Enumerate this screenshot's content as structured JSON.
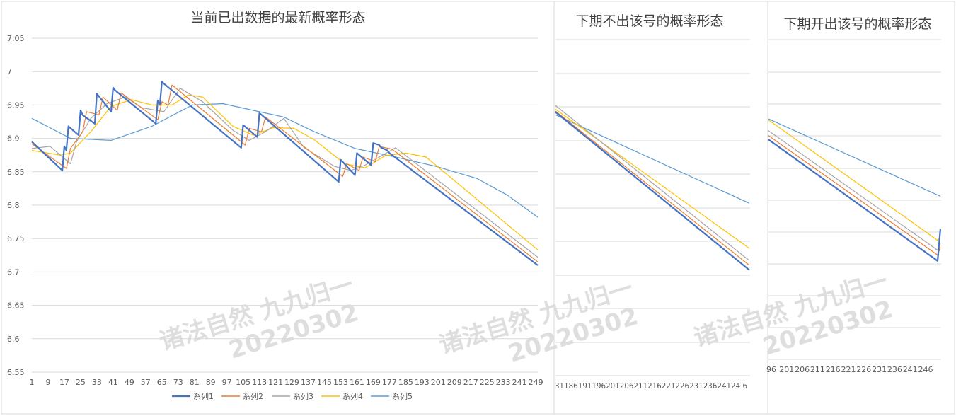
{
  "chart_data": [
    {
      "type": "line",
      "title": "当前已出数据的最新概率形态",
      "ylim": [
        6.55,
        7.05
      ],
      "yticks": [
        "7.05",
        "7",
        "6.95",
        "6.9",
        "6.85",
        "6.8",
        "6.75",
        "6.7",
        "6.65",
        "6.6",
        "6.55"
      ],
      "xticks": [
        "1",
        "9",
        "17",
        "25",
        "33",
        "41",
        "49",
        "57",
        "65",
        "73",
        "81",
        "89",
        "97",
        "105",
        "113",
        "121",
        "129",
        "137",
        "145",
        "153",
        "161",
        "169",
        "177",
        "185",
        "193",
        "201",
        "209",
        "217",
        "225",
        "233",
        "241",
        "249"
      ],
      "xlim": [
        1,
        250
      ],
      "legend_position": "bottom",
      "series": [
        {
          "name": "系列1",
          "color": "#4472c4",
          "x": [
            1,
            16,
            17,
            18,
            19,
            24,
            25,
            26,
            32,
            33,
            40,
            41,
            42,
            62,
            63,
            64,
            65,
            66,
            104,
            105,
            112,
            113,
            152,
            153,
            160,
            161,
            168,
            169,
            172,
            173,
            176,
            177,
            250
          ],
          "y": [
            6.895,
            6.852,
            6.888,
            6.882,
            6.918,
            6.905,
            6.942,
            6.935,
            6.922,
            6.967,
            6.94,
            6.976,
            6.972,
            6.922,
            6.957,
            6.95,
            6.985,
            6.982,
            6.886,
            6.92,
            6.902,
            6.938,
            6.835,
            6.868,
            6.845,
            6.878,
            6.86,
            6.893,
            6.89,
            6.886,
            6.882,
            6.878,
            6.71
          ]
        },
        {
          "name": "系列2",
          "color": "#ed7d31",
          "x": [
            1,
            18,
            20,
            26,
            28,
            34,
            36,
            43,
            45,
            63,
            65,
            68,
            70,
            106,
            108,
            114,
            116,
            154,
            156,
            162,
            164,
            170,
            172,
            178,
            180,
            250
          ],
          "y": [
            6.892,
            6.855,
            6.885,
            6.91,
            6.94,
            6.935,
            6.962,
            6.942,
            6.968,
            6.928,
            6.955,
            6.95,
            6.98,
            6.89,
            6.915,
            6.91,
            6.932,
            6.843,
            6.862,
            6.852,
            6.872,
            6.865,
            6.888,
            6.884,
            6.88,
            6.715
          ]
        },
        {
          "name": "系列3",
          "color": "#a5a5a5",
          "x": [
            1,
            10,
            20,
            23,
            30,
            38,
            47,
            55,
            66,
            74,
            85,
            100,
            108,
            116,
            125,
            135,
            150,
            158,
            165,
            172,
            180,
            250
          ],
          "y": [
            6.885,
            6.888,
            6.862,
            6.895,
            6.93,
            6.952,
            6.962,
            6.946,
            6.94,
            6.975,
            6.955,
            6.912,
            6.897,
            6.91,
            6.93,
            6.886,
            6.858,
            6.852,
            6.86,
            6.872,
            6.886,
            6.722
          ]
        },
        {
          "name": "系列4",
          "color": "#ffc000",
          "x": [
            1,
            5,
            15,
            20,
            30,
            40,
            50,
            60,
            70,
            78,
            85,
            100,
            110,
            120,
            130,
            140,
            155,
            165,
            175,
            185,
            195,
            250
          ],
          "y": [
            6.882,
            6.88,
            6.875,
            6.878,
            6.91,
            6.948,
            6.958,
            6.95,
            6.95,
            6.965,
            6.962,
            6.918,
            6.905,
            6.916,
            6.915,
            6.898,
            6.862,
            6.856,
            6.874,
            6.878,
            6.872,
            6.733
          ]
        },
        {
          "name": "系列5",
          "color": "#5b9bd5",
          "x": [
            1,
            20,
            40,
            60,
            80,
            95,
            110,
            125,
            140,
            160,
            180,
            200,
            220,
            235,
            250
          ],
          "y": [
            6.93,
            6.9,
            6.897,
            6.918,
            6.95,
            6.952,
            6.942,
            6.932,
            6.91,
            6.885,
            6.872,
            6.858,
            6.84,
            6.815,
            6.782
          ]
        }
      ]
    },
    {
      "type": "line",
      "title": "下期不出该号的概率形态",
      "xtick_text": "3118619119620120621121622122623123624124 6",
      "series": [
        {
          "name": "系列1",
          "color": "#4472c4",
          "y": [
            6.873,
            6.705
          ]
        },
        {
          "name": "系列2",
          "color": "#ed7d31",
          "y": [
            6.874,
            6.71
          ]
        },
        {
          "name": "系列3",
          "color": "#a5a5a5",
          "y": [
            6.88,
            6.715
          ]
        },
        {
          "name": "系列4",
          "color": "#ffc000",
          "y": [
            6.876,
            6.728
          ]
        },
        {
          "name": "系列5",
          "color": "#5b9bd5",
          "y": [
            6.87,
            6.776
          ]
        }
      ]
    },
    {
      "type": "line",
      "title": "下期开出该号的概率形态",
      "xticks": [
        "96",
        "201",
        "206",
        "211",
        "216",
        "221",
        "226",
        "231",
        "236",
        "241",
        "246"
      ],
      "series": [
        {
          "name": "系列1",
          "color": "#4472c4",
          "y": [
            6.848,
            6.724,
            6.757
          ]
        },
        {
          "name": "系列2",
          "color": "#ed7d31",
          "y": [
            6.852,
            6.73,
            6.738
          ]
        },
        {
          "name": "系列3",
          "color": "#a5a5a5",
          "y": [
            6.857,
            6.735,
            6.742
          ]
        },
        {
          "name": "系列4",
          "color": "#ffc000",
          "y": [
            6.868,
            6.745,
            6.748
          ]
        },
        {
          "name": "系列5",
          "color": "#5b9bd5",
          "y": [
            6.869,
            6.79
          ]
        }
      ]
    }
  ],
  "watermark": {
    "line1": "诸法自然 九九归一",
    "line2": "20220302"
  }
}
